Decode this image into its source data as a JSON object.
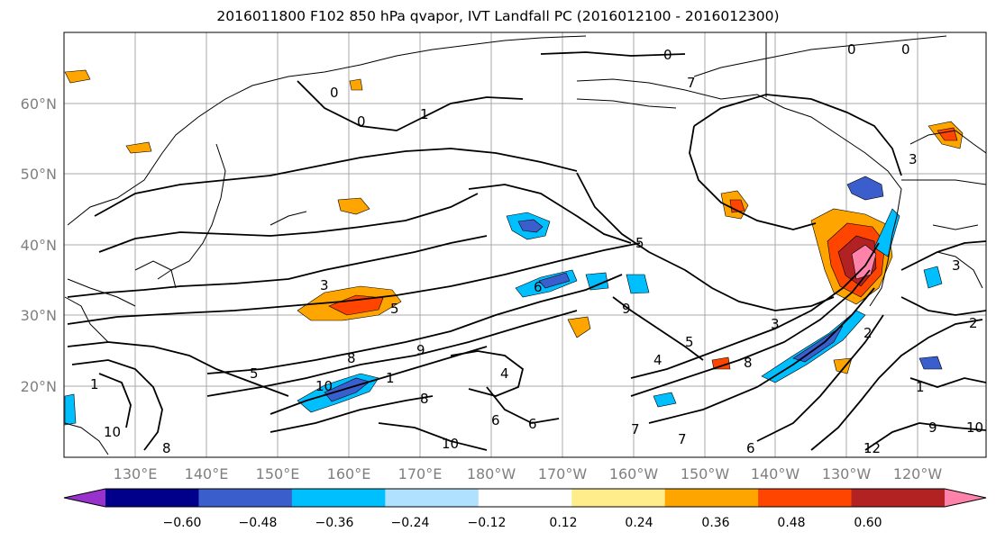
{
  "title": "2016011800 F102 850 hPa qvapor, IVT Landfall PC (2016012100 - 2016012300)",
  "lat_labels": [
    "60°N",
    "50°N",
    "40°N",
    "30°N",
    "20°N"
  ],
  "lon_labels": [
    "130°E",
    "140°E",
    "150°E",
    "160°E",
    "170°E",
    "180°W",
    "170°W",
    "160°W",
    "150°W",
    "140°W",
    "130°W",
    "120°W"
  ],
  "colorbar": {
    "colors": [
      "#9932cc",
      "#00008b",
      "#3a5fcd",
      "#00bfff",
      "#b0e2ff",
      "#ffffff",
      "#ffec8b",
      "#ffa500",
      "#ff4500",
      "#b22222",
      "#ff82ab"
    ],
    "tick_labels": [
      "−0.60",
      "−0.48",
      "−0.36",
      "−0.24",
      "−0.12",
      "0.12",
      "0.24",
      "0.36",
      "0.48",
      "0.60"
    ]
  },
  "contour_labels": [
    "0",
    "0",
    "0",
    "0",
    "0",
    "1",
    "1",
    "3",
    "3",
    "3",
    "3",
    "5",
    "5",
    "5",
    "4",
    "4",
    "5",
    "6",
    "6",
    "6",
    "6",
    "7",
    "7",
    "7",
    "8",
    "8",
    "8",
    "9",
    "9",
    "9",
    "10",
    "10",
    "10",
    "10",
    "12",
    "2",
    "2",
    "1",
    "1",
    "8"
  ]
}
